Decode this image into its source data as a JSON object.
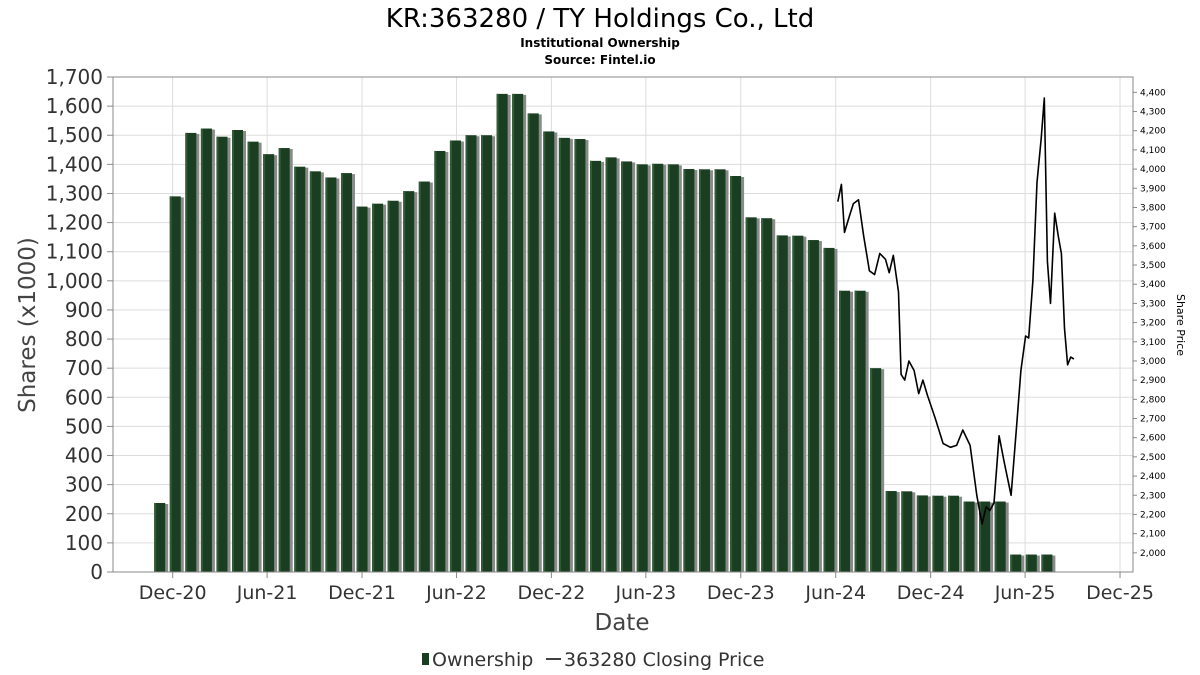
{
  "chart_data": {
    "type": "bar",
    "title": "KR:363280 / TY Holdings Co., Ltd",
    "subtitle": "Institutional Ownership",
    "source": "Source: Fintel.io",
    "xlabel": "Date",
    "ylabel": "Shares (x1000)",
    "y2label": "Share Price",
    "ylim": [
      0,
      1700
    ],
    "y2lim": [
      1900,
      4480
    ],
    "yticks": [
      0,
      100,
      200,
      300,
      400,
      500,
      600,
      700,
      800,
      900,
      1000,
      1100,
      1200,
      1300,
      1400,
      1500,
      1600,
      1700
    ],
    "ytick_labels": [
      "0",
      "100",
      "200",
      "300",
      "400",
      "500",
      "600",
      "700",
      "800",
      "900",
      "1,000",
      "1,100",
      "1,200",
      "1,300",
      "1,400",
      "1,500",
      "1,600",
      "1,700"
    ],
    "y2ticks": [
      2000,
      2100,
      2200,
      2300,
      2400,
      2500,
      2600,
      2700,
      2800,
      2900,
      3000,
      3100,
      3200,
      3300,
      3400,
      3500,
      3600,
      3700,
      3800,
      3900,
      4000,
      4100,
      4200,
      4300,
      4400
    ],
    "y2tick_labels": [
      "2,000",
      "2,100",
      "2,200",
      "2,300",
      "2,400",
      "2,500",
      "2,600",
      "2,700",
      "2,800",
      "2,900",
      "3,000",
      "3,100",
      "3,200",
      "3,300",
      "3,400",
      "3,500",
      "3,600",
      "3,700",
      "3,800",
      "3,900",
      "4,000",
      "4,100",
      "4,200",
      "4,300",
      "4,400"
    ],
    "xrange": [
      "2020-08-08",
      "2025-12-26"
    ],
    "xticks": [
      {
        "date": "2020-12-01",
        "label": "Dec-20"
      },
      {
        "date": "2021-06-01",
        "label": "Jun-21"
      },
      {
        "date": "2021-12-01",
        "label": "Dec-21"
      },
      {
        "date": "2022-06-01",
        "label": "Jun-22"
      },
      {
        "date": "2022-12-01",
        "label": "Dec-22"
      },
      {
        "date": "2023-06-01",
        "label": "Jun-23"
      },
      {
        "date": "2023-12-01",
        "label": "Dec-23"
      },
      {
        "date": "2024-06-01",
        "label": "Jun-24"
      },
      {
        "date": "2024-12-01",
        "label": "Dec-24"
      },
      {
        "date": "2025-06-01",
        "label": "Jun-25"
      },
      {
        "date": "2025-12-01",
        "label": "Dec-25"
      }
    ],
    "grid": true,
    "legend_position": "bottom",
    "colors": {
      "bar": "#1b3d22",
      "bar_highlight": "#2e5e36",
      "bar_shadow": "#8a8a8a",
      "line": "#000000",
      "grid": "#dddddd"
    },
    "series": [
      {
        "name": "Ownership",
        "type": "bar",
        "x": [
          "2020-11-06",
          "2020-12-06",
          "2021-01-05",
          "2021-02-04",
          "2021-03-06",
          "2021-04-05",
          "2021-05-05",
          "2021-06-04",
          "2021-07-04",
          "2021-08-03",
          "2021-09-02",
          "2021-10-02",
          "2021-11-01",
          "2021-12-01",
          "2021-12-31",
          "2022-01-30",
          "2022-03-01",
          "2022-03-31",
          "2022-04-30",
          "2022-05-30",
          "2022-06-29",
          "2022-07-29",
          "2022-08-28",
          "2022-09-27",
          "2022-10-27",
          "2022-11-26",
          "2022-12-26",
          "2023-01-25",
          "2023-02-24",
          "2023-03-26",
          "2023-04-25",
          "2023-05-25",
          "2023-06-24",
          "2023-07-24",
          "2023-08-23",
          "2023-09-22",
          "2023-10-22",
          "2023-11-21",
          "2023-12-21",
          "2024-01-20",
          "2024-02-19",
          "2024-03-20",
          "2024-04-19",
          "2024-05-19",
          "2024-06-18",
          "2024-07-18",
          "2024-08-17",
          "2024-09-16",
          "2024-10-16",
          "2024-11-15",
          "2024-12-15",
          "2025-01-14",
          "2025-02-13",
          "2025-03-15",
          "2025-04-14",
          "2025-05-14",
          "2025-06-13",
          "2025-07-13",
          "2025-08-12",
          "2025-09-11"
        ],
        "values": [
          237,
          1290,
          1508,
          1523,
          1495,
          1518,
          1478,
          1435,
          1456,
          1392,
          1376,
          1355,
          1370,
          1255,
          1265,
          1275,
          1308,
          1341,
          1446,
          1482,
          1500,
          1500,
          1642,
          1642,
          1575,
          1513,
          1491,
          1487,
          1412,
          1424,
          1410,
          1400,
          1402,
          1400,
          1384,
          1383,
          1383,
          1360,
          1218,
          1215,
          1156,
          1155,
          1140,
          1113,
          966,
          966,
          700,
          278,
          277,
          263,
          262,
          262,
          242,
          242,
          242,
          60,
          60,
          60,
          0,
          0
        ]
      },
      {
        "name": "363280 Closing Price",
        "type": "line",
        "x": [
          "2024-06-05",
          "2024-06-12",
          "2024-06-18",
          "2024-06-28",
          "2024-07-05",
          "2024-07-15",
          "2024-07-25",
          "2024-08-05",
          "2024-08-15",
          "2024-08-25",
          "2024-09-05",
          "2024-09-12",
          "2024-09-20",
          "2024-09-30",
          "2024-10-05",
          "2024-10-12",
          "2024-10-20",
          "2024-10-30",
          "2024-11-08",
          "2024-11-16",
          "2024-11-25",
          "2024-12-10",
          "2024-12-25",
          "2025-01-08",
          "2025-01-20",
          "2025-02-01",
          "2025-02-15",
          "2025-02-28",
          "2025-03-10",
          "2025-03-18",
          "2025-03-25",
          "2025-04-02",
          "2025-04-12",
          "2025-04-22",
          "2025-05-05",
          "2025-05-15",
          "2025-05-24",
          "2025-06-02",
          "2025-06-08",
          "2025-06-16",
          "2025-06-24",
          "2025-07-02",
          "2025-07-08",
          "2025-07-14",
          "2025-07-20",
          "2025-07-28",
          "2025-08-04",
          "2025-08-10",
          "2025-08-16",
          "2025-08-22",
          "2025-08-28",
          "2025-09-03"
        ],
        "values": [
          3830,
          3920,
          3670,
          3760,
          3820,
          3840,
          3650,
          3470,
          3450,
          3560,
          3530,
          3460,
          3550,
          3360,
          2930,
          2900,
          3000,
          2950,
          2830,
          2900,
          2820,
          2700,
          2570,
          2550,
          2560,
          2640,
          2560,
          2300,
          2150,
          2240,
          2220,
          2260,
          2610,
          2470,
          2300,
          2640,
          2950,
          3130,
          3120,
          3420,
          3930,
          4160,
          4370,
          3520,
          3300,
          3770,
          3650,
          3560,
          3170,
          2980,
          3020,
          3010
        ]
      }
    ]
  }
}
